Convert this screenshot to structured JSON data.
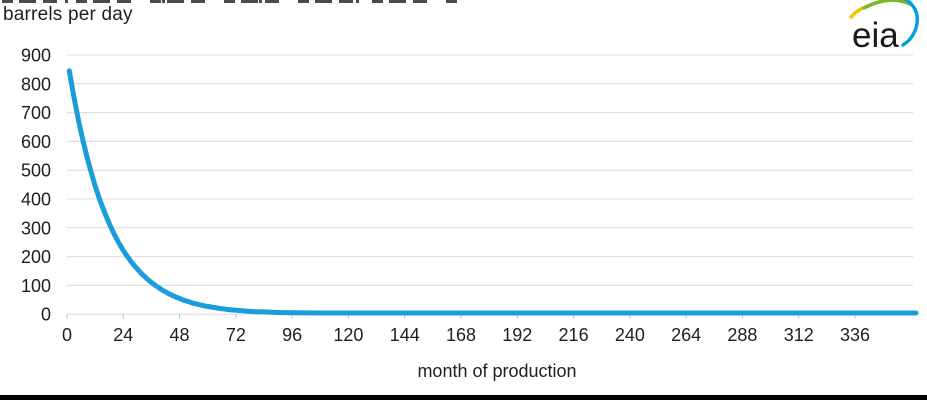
{
  "header": {
    "unit_label": "barrels per day"
  },
  "logo": {
    "text": "eia",
    "text_color": "#1a1a1a",
    "arc_yellow": "#f2c500",
    "arc_green": "#76b82a",
    "arc_blue": "#00a0dc"
  },
  "chart_data": {
    "type": "line",
    "title": "barrels per day",
    "xlabel": "month of production",
    "ylabel": "",
    "xlim": [
      0,
      362
    ],
    "ylim": [
      0,
      900
    ],
    "x_ticks": [
      0,
      24,
      48,
      72,
      96,
      120,
      144,
      168,
      192,
      216,
      240,
      264,
      288,
      312,
      336
    ],
    "y_ticks": [
      0,
      100,
      200,
      300,
      400,
      500,
      600,
      700,
      800,
      900
    ],
    "grid": "horizontal",
    "legend_position": "none",
    "line_color": "#1A9DD9",
    "grid_color": "#D9D9D9",
    "tick_color": "#C2C2C2",
    "label_color": "#1f1f1f",
    "series": [
      {
        "name": "oil production per well",
        "points": [
          [
            1,
            845
          ],
          [
            2,
            798
          ],
          [
            3,
            753
          ],
          [
            4,
            710
          ],
          [
            5,
            670
          ],
          [
            6,
            632
          ],
          [
            7,
            597
          ],
          [
            8,
            563
          ],
          [
            9,
            531
          ],
          [
            10,
            501
          ],
          [
            11,
            473
          ],
          [
            12,
            446
          ],
          [
            13,
            421
          ],
          [
            14,
            397
          ],
          [
            15,
            375
          ],
          [
            16,
            354
          ],
          [
            17,
            334
          ],
          [
            18,
            315
          ],
          [
            19,
            297
          ],
          [
            20,
            280
          ],
          [
            21,
            264
          ],
          [
            22,
            249
          ],
          [
            23,
            235
          ],
          [
            24,
            222
          ],
          [
            25,
            209
          ],
          [
            26,
            198
          ],
          [
            27,
            186
          ],
          [
            28,
            176
          ],
          [
            29,
            166
          ],
          [
            30,
            157
          ],
          [
            31,
            148
          ],
          [
            32,
            139
          ],
          [
            33,
            132
          ],
          [
            34,
            124
          ],
          [
            35,
            117
          ],
          [
            36,
            110
          ],
          [
            37,
            104
          ],
          [
            38,
            98
          ],
          [
            39,
            93
          ],
          [
            40,
            87
          ],
          [
            41,
            82
          ],
          [
            42,
            78
          ],
          [
            43,
            73
          ],
          [
            44,
            69
          ],
          [
            45,
            65
          ],
          [
            46,
            61
          ],
          [
            47,
            58
          ],
          [
            48,
            55
          ],
          [
            49,
            51
          ],
          [
            50,
            48
          ],
          [
            51,
            46
          ],
          [
            52,
            43
          ],
          [
            53,
            40
          ],
          [
            54,
            38
          ],
          [
            55,
            36
          ],
          [
            56,
            34
          ],
          [
            57,
            32
          ],
          [
            58,
            30
          ],
          [
            59,
            28
          ],
          [
            60,
            27
          ],
          [
            63,
            23
          ],
          [
            66,
            19
          ],
          [
            69,
            16
          ],
          [
            72,
            14
          ],
          [
            76,
            11
          ],
          [
            80,
            9
          ],
          [
            84,
            8
          ],
          [
            90,
            6
          ],
          [
            96,
            5
          ],
          [
            108,
            4
          ],
          [
            120,
            4
          ],
          [
            144,
            4
          ],
          [
            168,
            4
          ],
          [
            192,
            4
          ],
          [
            216,
            4
          ],
          [
            240,
            4
          ],
          [
            264,
            4
          ],
          [
            288,
            4
          ],
          [
            312,
            4
          ],
          [
            336,
            4
          ],
          [
            350,
            4
          ],
          [
            362,
            4
          ]
        ]
      }
    ]
  }
}
